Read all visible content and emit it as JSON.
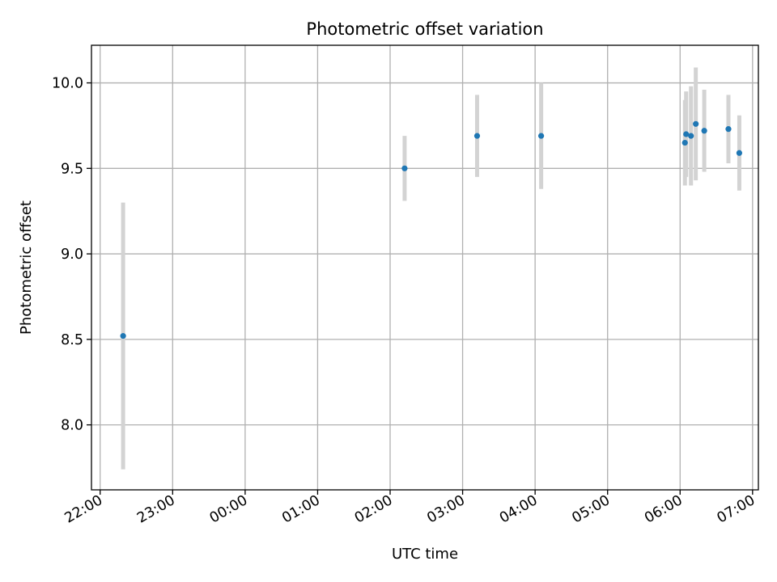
{
  "chart_data": {
    "type": "scatter",
    "title": "Photometric offset variation",
    "xlabel": "UTC time",
    "ylabel": "Photometric offset",
    "grid": true,
    "error_bars": true,
    "colors": {
      "point": "#1f77b4",
      "errorbar": "#d3d3d3",
      "grid": "#b0b0b0"
    },
    "xlim_hours": [
      -2.12,
      7.08
    ],
    "ylim": [
      7.62,
      10.22
    ],
    "x_ticks": [
      "22:00",
      "23:00",
      "00:00",
      "01:00",
      "02:00",
      "03:00",
      "04:00",
      "05:00",
      "06:00",
      "07:00"
    ],
    "y_ticks": [
      "8.0",
      "8.5",
      "9.0",
      "9.5",
      "10.0"
    ],
    "points": [
      {
        "x": "22:19",
        "y": 8.52,
        "err": 0.78
      },
      {
        "x": "02:12",
        "y": 9.5,
        "err": 0.19
      },
      {
        "x": "03:12",
        "y": 9.69,
        "err": 0.24
      },
      {
        "x": "04:05",
        "y": 9.69,
        "err": 0.31
      },
      {
        "x": "06:04",
        "y": 9.65,
        "err": 0.25
      },
      {
        "x": "06:05",
        "y": 9.7,
        "err": 0.25
      },
      {
        "x": "06:09",
        "y": 9.69,
        "err": 0.29
      },
      {
        "x": "06:13",
        "y": 9.76,
        "err": 0.33
      },
      {
        "x": "06:20",
        "y": 9.72,
        "err": 0.24
      },
      {
        "x": "06:40",
        "y": 9.73,
        "err": 0.2
      },
      {
        "x": "06:49",
        "y": 9.59,
        "err": 0.22
      }
    ]
  }
}
